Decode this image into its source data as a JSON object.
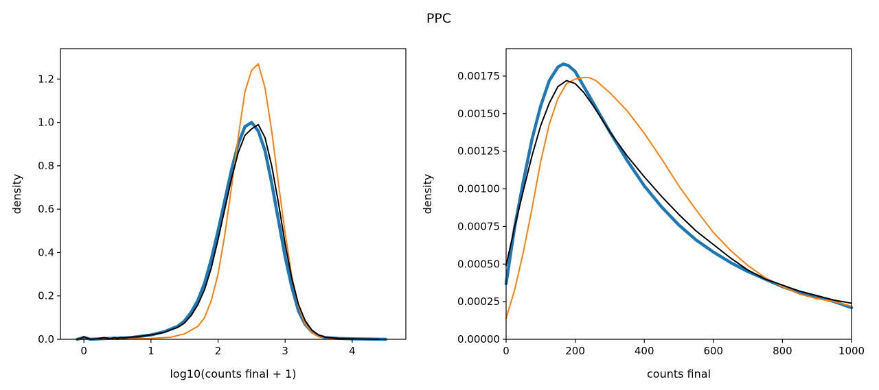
{
  "suptitle": "PPC",
  "colors": {
    "blue": "#1f77b4",
    "orange": "#ff7f0e",
    "black": "#000000"
  },
  "chart_data": [
    {
      "type": "line",
      "title": "",
      "xlabel": "log10(counts final + 1)",
      "ylabel": "density",
      "xlim": [
        -0.35,
        4.8
      ],
      "ylim": [
        0,
        1.34
      ],
      "xticks": [
        0,
        1,
        2,
        3,
        4
      ],
      "yticks": [
        0.0,
        0.2,
        0.4,
        0.6,
        0.8,
        1.0,
        1.2
      ],
      "ytick_labels": [
        "0.0",
        "0.2",
        "0.4",
        "0.6",
        "0.8",
        "1.0",
        "1.2"
      ],
      "grid": false,
      "series": [
        {
          "color": "#1f77b4",
          "width": 4.5,
          "x": [
            -0.1,
            0,
            0.1,
            0.3,
            0.5,
            0.7,
            1.0,
            1.2,
            1.4,
            1.5,
            1.6,
            1.7,
            1.8,
            1.9,
            2.0,
            2.1,
            2.2,
            2.3,
            2.4,
            2.5,
            2.6,
            2.7,
            2.8,
            2.9,
            3.0,
            3.1,
            3.2,
            3.3,
            3.4,
            3.5,
            3.6,
            3.8,
            4.0,
            4.2,
            4.5
          ],
          "y": [
            0.0,
            0.008,
            0.0,
            0.003,
            0.005,
            0.008,
            0.02,
            0.035,
            0.06,
            0.085,
            0.125,
            0.18,
            0.26,
            0.37,
            0.5,
            0.64,
            0.78,
            0.9,
            0.98,
            1.0,
            0.96,
            0.87,
            0.72,
            0.55,
            0.38,
            0.24,
            0.13,
            0.068,
            0.034,
            0.016,
            0.008,
            0.004,
            0.002,
            0.001,
            0.0
          ]
        },
        {
          "color": "#ff7f0e",
          "width": 2,
          "x": [
            -0.1,
            0,
            0.5,
            1.0,
            1.3,
            1.5,
            1.7,
            1.8,
            1.9,
            2.0,
            2.1,
            2.2,
            2.3,
            2.4,
            2.5,
            2.6,
            2.7,
            2.8,
            2.9,
            3.0,
            3.1,
            3.2,
            3.3,
            3.4,
            3.5,
            3.7,
            4.0,
            4.4
          ],
          "y": [
            0.0,
            0.0,
            0.0,
            0.004,
            0.01,
            0.025,
            0.06,
            0.1,
            0.18,
            0.3,
            0.48,
            0.7,
            0.93,
            1.14,
            1.24,
            1.27,
            1.16,
            0.96,
            0.72,
            0.49,
            0.29,
            0.15,
            0.07,
            0.03,
            0.012,
            0.004,
            0.001,
            0.0
          ]
        },
        {
          "color": "#000000",
          "width": 2,
          "x": [
            -0.1,
            -0.05,
            0,
            0.05,
            0.1,
            0.2,
            0.3,
            0.4,
            0.45,
            0.5,
            0.55,
            0.6,
            0.7,
            0.8,
            1.0,
            1.2,
            1.4,
            1.5,
            1.6,
            1.7,
            1.8,
            1.9,
            2.0,
            2.1,
            2.2,
            2.3,
            2.4,
            2.5,
            2.6,
            2.7,
            2.8,
            2.9,
            3.0,
            3.1,
            3.2,
            3.3,
            3.4,
            3.5,
            3.6,
            3.8,
            4.0,
            4.4
          ],
          "y": [
            0.0,
            0.003,
            0.012,
            0.005,
            0.0,
            0.002,
            0.008,
            0.002,
            0.008,
            0.004,
            0.008,
            0.006,
            0.01,
            0.012,
            0.02,
            0.032,
            0.055,
            0.075,
            0.11,
            0.16,
            0.23,
            0.33,
            0.46,
            0.6,
            0.74,
            0.86,
            0.94,
            0.97,
            0.99,
            0.93,
            0.8,
            0.63,
            0.44,
            0.28,
            0.16,
            0.085,
            0.042,
            0.02,
            0.009,
            0.004,
            0.002,
            0.0
          ]
        }
      ]
    },
    {
      "type": "line",
      "title": "",
      "xlabel": "counts final",
      "ylabel": "density",
      "xlim": [
        0,
        1000
      ],
      "ylim": [
        0,
        0.001932
      ],
      "xticks": [
        0,
        200,
        400,
        600,
        800,
        1000
      ],
      "yticks": [
        0,
        0.00025,
        0.0005,
        0.00075,
        0.001,
        0.00125,
        0.0015,
        0.00175
      ],
      "ytick_labels": [
        "0.00000",
        "0.00025",
        "0.00050",
        "0.00075",
        "0.00100",
        "0.00125",
        "0.00150",
        "0.00175"
      ],
      "grid": false,
      "series": [
        {
          "color": "#1f77b4",
          "width": 4.5,
          "x": [
            0,
            25,
            50,
            75,
            100,
            125,
            150,
            165,
            180,
            200,
            225,
            250,
            300,
            350,
            400,
            450,
            500,
            550,
            600,
            650,
            700,
            750,
            800,
            850,
            900,
            950,
            1000
          ],
          "y": [
            0.00037,
            0.00075,
            0.00105,
            0.00133,
            0.00155,
            0.00172,
            0.00181,
            0.00183,
            0.00182,
            0.00178,
            0.00168,
            0.00158,
            0.00138,
            0.00119,
            0.00102,
            0.00088,
            0.00076,
            0.00066,
            0.00058,
            0.00051,
            0.00045,
            0.0004,
            0.00035,
            0.00031,
            0.00028,
            0.00025,
            0.00021
          ]
        },
        {
          "color": "#ff7f0e",
          "width": 2,
          "x": [
            0,
            25,
            50,
            75,
            100,
            125,
            150,
            175,
            200,
            225,
            240,
            260,
            300,
            350,
            400,
            450,
            500,
            550,
            600,
            650,
            700,
            750,
            800,
            850,
            900,
            950,
            1000
          ],
          "y": [
            0.00014,
            0.00033,
            0.00058,
            0.00087,
            0.00118,
            0.00143,
            0.0016,
            0.0017,
            0.00173,
            0.00174,
            0.00174,
            0.00172,
            0.00164,
            0.00152,
            0.00137,
            0.0012,
            0.00102,
            0.00086,
            0.00071,
            0.00059,
            0.00049,
            0.00041,
            0.00035,
            0.0003,
            0.00027,
            0.00025,
            0.00022
          ]
        },
        {
          "color": "#000000",
          "width": 2,
          "x": [
            0,
            25,
            50,
            75,
            100,
            125,
            150,
            175,
            200,
            225,
            250,
            300,
            350,
            400,
            450,
            500,
            550,
            600,
            650,
            700,
            750,
            800,
            850,
            900,
            950,
            1000
          ],
          "y": [
            0.00049,
            0.00075,
            0.00099,
            0.00122,
            0.00142,
            0.00157,
            0.00168,
            0.00172,
            0.0017,
            0.00164,
            0.00156,
            0.00138,
            0.00122,
            0.00108,
            0.00095,
            0.00083,
            0.00072,
            0.00063,
            0.00054,
            0.00046,
            0.0004,
            0.00036,
            0.00032,
            0.00029,
            0.00026,
            0.00024
          ]
        }
      ]
    }
  ]
}
